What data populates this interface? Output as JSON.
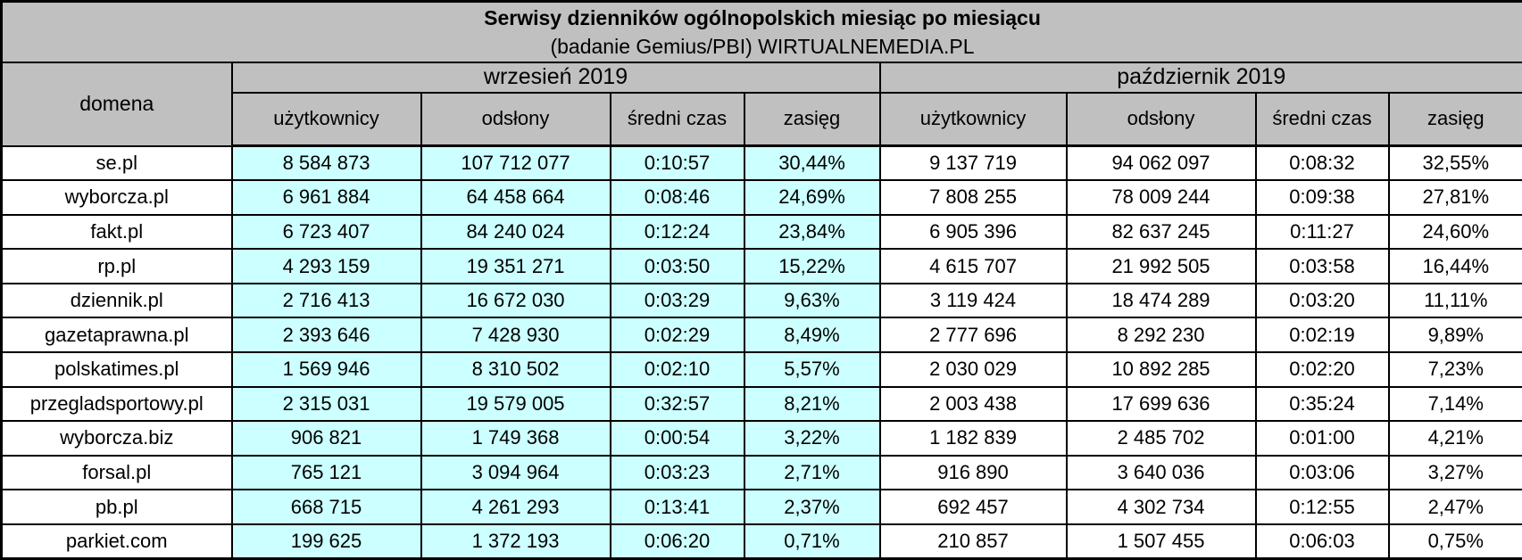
{
  "colors": {
    "header_bg": "#c0c0c0",
    "september_bg": "#ccffff",
    "october_bg": "#ffffff",
    "border": "#000000",
    "text": "#000000"
  },
  "chart_data": {
    "type": "table",
    "title": "Serwisy dzienników ogólnopolskich miesiąc po miesiącu",
    "subtitle": "(badanie Gemius/PBI) WIRTUALNEMEDIA.PL",
    "domain_header": "domena",
    "groups": [
      {
        "label": "wrzesień 2019",
        "columns": [
          "użytkownicy",
          "odsłony",
          "średni czas",
          "zasięg"
        ]
      },
      {
        "label": "październik 2019",
        "columns": [
          "użytkownicy",
          "odsłony",
          "średni czas",
          "zasięg"
        ]
      }
    ],
    "rows": [
      {
        "domain": "se.pl",
        "september": [
          "8 584 873",
          "107 712 077",
          "0:10:57",
          "30,44%"
        ],
        "october": [
          "9 137 719",
          "94 062 097",
          "0:08:32",
          "32,55%"
        ]
      },
      {
        "domain": "wyborcza.pl",
        "september": [
          "6 961 884",
          "64 458 664",
          "0:08:46",
          "24,69%"
        ],
        "october": [
          "7 808 255",
          "78 009 244",
          "0:09:38",
          "27,81%"
        ]
      },
      {
        "domain": "fakt.pl",
        "september": [
          "6 723 407",
          "84 240 024",
          "0:12:24",
          "23,84%"
        ],
        "october": [
          "6 905 396",
          "82 637 245",
          "0:11:27",
          "24,60%"
        ]
      },
      {
        "domain": "rp.pl",
        "september": [
          "4 293 159",
          "19 351 271",
          "0:03:50",
          "15,22%"
        ],
        "october": [
          "4 615 707",
          "21 992 505",
          "0:03:58",
          "16,44%"
        ]
      },
      {
        "domain": "dziennik.pl",
        "september": [
          "2 716 413",
          "16 672 030",
          "0:03:29",
          "9,63%"
        ],
        "october": [
          "3 119 424",
          "18 474 289",
          "0:03:20",
          "11,11%"
        ]
      },
      {
        "domain": "gazetaprawna.pl",
        "september": [
          "2 393 646",
          "7 428 930",
          "0:02:29",
          "8,49%"
        ],
        "october": [
          "2 777 696",
          "8 292 230",
          "0:02:19",
          "9,89%"
        ]
      },
      {
        "domain": "polskatimes.pl",
        "september": [
          "1 569 946",
          "8 310 502",
          "0:02:10",
          "5,57%"
        ],
        "october": [
          "2 030 029",
          "10 892 285",
          "0:02:20",
          "7,23%"
        ]
      },
      {
        "domain": "przegladsportowy.pl",
        "september": [
          "2 315 031",
          "19 579 005",
          "0:32:57",
          "8,21%"
        ],
        "october": [
          "2 003 438",
          "17 699 636",
          "0:35:24",
          "7,14%"
        ]
      },
      {
        "domain": "wyborcza.biz",
        "september": [
          "906 821",
          "1 749 368",
          "0:00:54",
          "3,22%"
        ],
        "october": [
          "1 182 839",
          "2 485 702",
          "0:01:00",
          "4,21%"
        ]
      },
      {
        "domain": "forsal.pl",
        "september": [
          "765 121",
          "3 094 964",
          "0:03:23",
          "2,71%"
        ],
        "october": [
          "916 890",
          "3 640 036",
          "0:03:06",
          "3,27%"
        ]
      },
      {
        "domain": "pb.pl",
        "september": [
          "668 715",
          "4 261 293",
          "0:13:41",
          "2,37%"
        ],
        "october": [
          "692 457",
          "4 302 734",
          "0:12:55",
          "2,47%"
        ]
      },
      {
        "domain": "parkiet.com",
        "september": [
          "199 625",
          "1 372 193",
          "0:06:20",
          "0,71%"
        ],
        "october": [
          "210 857",
          "1 507 455",
          "0:06:03",
          "0,75%"
        ]
      }
    ]
  }
}
